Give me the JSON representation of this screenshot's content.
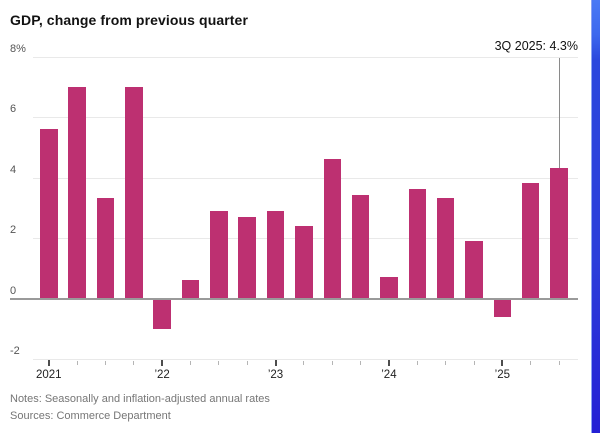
{
  "header": {
    "title": "GDP, change from previous quarter"
  },
  "annotation": {
    "label": "3Q 2025: 4.3%"
  },
  "notes": {
    "line1": "Notes: Seasonally and inflation-adjusted annual rates",
    "line2": "Sources: Commerce Department"
  },
  "colors": {
    "bar": "#bd3071",
    "grid": "#e9e9e9",
    "zero_line": "#9a9a9a",
    "annotation_line": "#8a8a8a",
    "edge_strip_blue": "#2b47dd"
  },
  "chart_data": {
    "type": "bar",
    "title": "GDP, change from previous quarter",
    "unit": "%",
    "categories": [
      "1Q 2021",
      "2Q 2021",
      "3Q 2021",
      "4Q 2021",
      "1Q 2022",
      "2Q 2022",
      "3Q 2022",
      "4Q 2022",
      "1Q 2023",
      "2Q 2023",
      "3Q 2023",
      "4Q 2023",
      "1Q 2024",
      "2Q 2024",
      "3Q 2024",
      "4Q 2024",
      "1Q 2025",
      "2Q 2025",
      "3Q 2025"
    ],
    "values": [
      5.6,
      7.0,
      3.3,
      7.0,
      -1.0,
      0.6,
      2.9,
      2.7,
      2.9,
      2.4,
      4.6,
      3.4,
      0.7,
      3.6,
      3.3,
      1.9,
      -0.6,
      3.8,
      4.3
    ],
    "ylim": [
      -2,
      8
    ],
    "grid": true,
    "legend_position": "none",
    "xlabel": "",
    "ylabel": "",
    "y_ticks": [
      {
        "value": 8,
        "label": "8%"
      },
      {
        "value": 6,
        "label": "6"
      },
      {
        "value": 4,
        "label": "4"
      },
      {
        "value": 2,
        "label": "2"
      },
      {
        "value": 0,
        "label": "0"
      },
      {
        "value": -2,
        "label": "-2"
      }
    ],
    "x_year_labels": [
      {
        "index": 0,
        "label": "2021"
      },
      {
        "index": 4,
        "label": "’22"
      },
      {
        "index": 8,
        "label": "’23"
      },
      {
        "index": 12,
        "label": "’24"
      },
      {
        "index": 16,
        "label": "’25"
      }
    ],
    "annotation": {
      "text": "3Q 2025: 4.3%",
      "target_index": 18,
      "target_value": 4.3
    }
  }
}
